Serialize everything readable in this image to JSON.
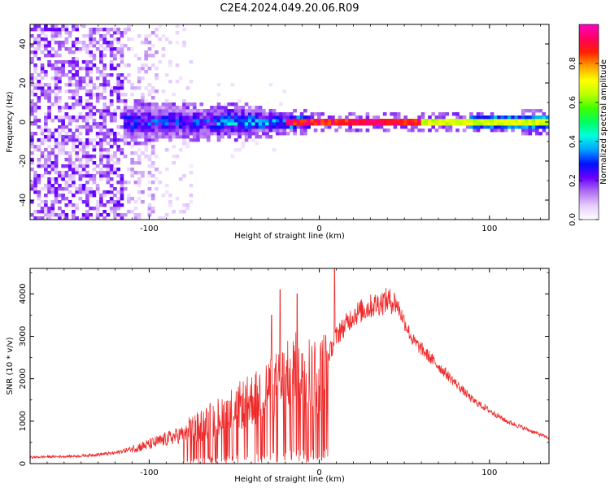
{
  "title": "C2E4.2024.049.20.06.R09",
  "chart_data": [
    {
      "type": "heatmap",
      "title": "C2E4.2024.049.20.06.R09",
      "xlabel": "Height of straight line (km)",
      "ylabel": "Frequency (Hz)",
      "xlim": [
        -170,
        135
      ],
      "ylim": [
        -50,
        50
      ],
      "xticks": [
        -100,
        0,
        100
      ],
      "xtick_labels": [
        "-100",
        "0",
        "100"
      ],
      "yticks": [
        -40,
        -20,
        0,
        20,
        40
      ],
      "ytick_labels": [
        "-40",
        "-20",
        "0",
        "20",
        "40"
      ],
      "grid": false,
      "colorbar": {
        "label": "Normalized spectral amplitude",
        "range": [
          0,
          1
        ],
        "ticks": [
          0.0,
          0.2,
          0.4,
          0.6,
          0.8
        ],
        "tick_labels": [
          "0.0",
          "0.2",
          "0.4",
          "0.6",
          "0.8"
        ],
        "colormap": [
          "#ffffff",
          "#e6ccff",
          "#b070f0",
          "#6a00ff",
          "#0010ff",
          "#00a0ff",
          "#00ffe0",
          "#00ff60",
          "#40ff00",
          "#c0ff00",
          "#ffff00",
          "#ffa000",
          "#ff2000",
          "#ff0060",
          "#ff00c0"
        ]
      },
      "structure": {
        "noise_band_x": [
          -170,
          -75
        ],
        "signal_center_frequency_hz": 0,
        "signal_halfwidth_hz": [
          [
            -110,
            8
          ],
          [
            -50,
            7
          ],
          [
            -20,
            4
          ],
          [
            0,
            2
          ],
          [
            40,
            2
          ],
          [
            135,
            3
          ]
        ],
        "peak_amplitude_x": [
          -20,
          60
        ]
      }
    },
    {
      "type": "line",
      "xlabel": "Height of straight line (km)",
      "ylabel": "SNR (10 * v/v)",
      "xlim": [
        -170,
        135
      ],
      "ylim": [
        0,
        4600
      ],
      "xticks": [
        -100,
        0,
        100
      ],
      "xtick_labels": [
        "-100",
        "0",
        "100"
      ],
      "yticks": [
        0,
        1000,
        2000,
        3000,
        4000
      ],
      "ytick_labels": [
        "0",
        "1000",
        "2000",
        "3000",
        "4000"
      ],
      "grid": false,
      "color": "#ee2b2b",
      "envelope": {
        "x": [
          -170,
          -140,
          -120,
          -100,
          -80,
          -60,
          -40,
          -20,
          -10,
          0,
          10,
          20,
          30,
          40,
          45,
          55,
          70,
          90,
          110,
          135
        ],
        "y": [
          150,
          180,
          250,
          450,
          700,
          1100,
          1500,
          2000,
          2300,
          2000,
          3000,
          3500,
          3700,
          3850,
          3800,
          2900,
          2300,
          1500,
          1000,
          600
        ]
      },
      "spikes": [
        {
          "x": -28,
          "y": 3500
        },
        {
          "x": -23,
          "y": 4100
        },
        {
          "x": -13,
          "y": 4000
        },
        {
          "x": 9,
          "y": 4600
        },
        {
          "x": 12,
          "y": 3300
        }
      ]
    }
  ]
}
